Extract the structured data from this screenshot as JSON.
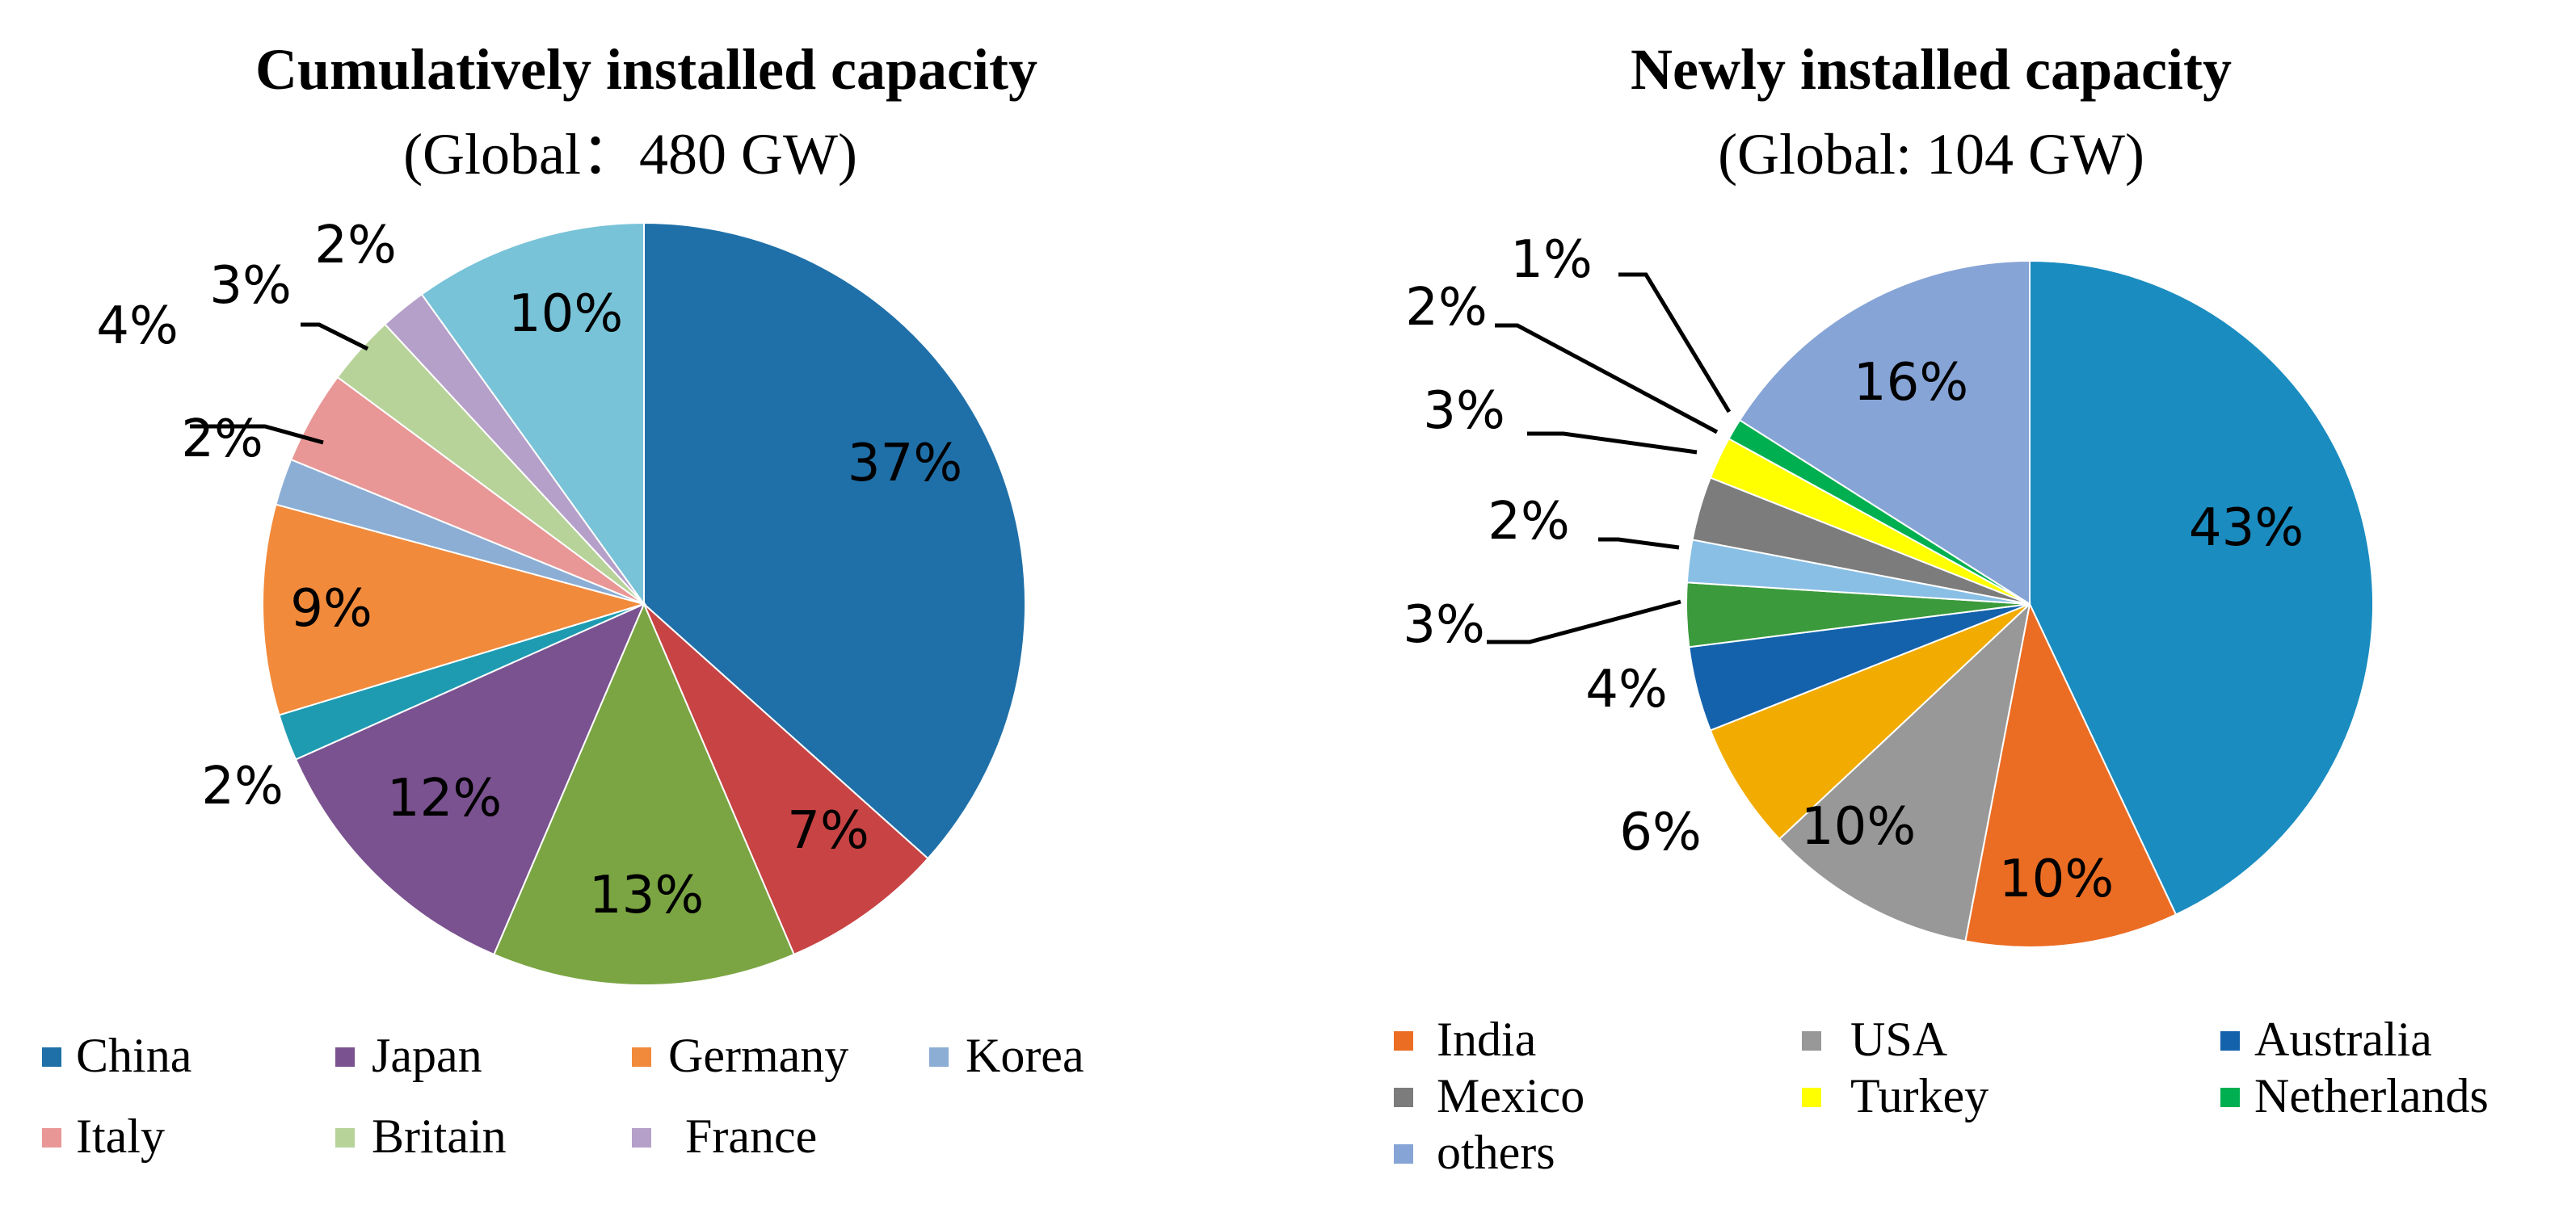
{
  "chart_data": [
    {
      "type": "pie",
      "title": "Cumulatively installed capacity",
      "subtitle": "(Global：480 GW)",
      "categories": [
        "China",
        "Japan",
        "Germany",
        "Korea",
        "Italy",
        "Britain",
        "France"
      ],
      "slices": [
        {
          "name": "China",
          "value": 37,
          "label": "37%",
          "color": "#1F6FA8",
          "legend": true
        },
        {
          "name": "",
          "value": 7,
          "label": "7%",
          "color": "#C84343",
          "legend": false
        },
        {
          "name": "",
          "value": 13,
          "label": "13%",
          "color": "#7BA443",
          "legend": false
        },
        {
          "name": "Japan",
          "value": 12,
          "label": "12%",
          "color": "#7B5290",
          "legend": true
        },
        {
          "name": "",
          "value": 2,
          "label": "2%",
          "color": "#1E9BB0",
          "legend": false
        },
        {
          "name": "Germany",
          "value": 9,
          "label": "9%",
          "color": "#F18A3A",
          "legend": true
        },
        {
          "name": "Korea",
          "value": 2,
          "label": "2%",
          "color": "#8DAED4",
          "legend": true
        },
        {
          "name": "Italy",
          "value": 4,
          "label": "4%",
          "color": "#E99696",
          "legend": true
        },
        {
          "name": "Britain",
          "value": 3,
          "label": "3%",
          "color": "#B7D39A",
          "legend": true
        },
        {
          "name": "France",
          "value": 2,
          "label": "2%",
          "color": "#B5A0C9",
          "legend": true
        },
        {
          "name": "",
          "value": 10,
          "label": "10%",
          "color": "#78C3D8",
          "legend": false
        }
      ]
    },
    {
      "type": "pie",
      "title": "Newly installed capacity",
      "subtitle": "(Global: 104 GW)",
      "categories": [
        "India",
        "USA",
        "Australia",
        "Mexico",
        "Turkey",
        "Netherlands",
        "others"
      ],
      "slices": [
        {
          "name": "",
          "value": 43,
          "label": "43%",
          "color": "#1A8CC0",
          "legend": false
        },
        {
          "name": "India",
          "value": 10,
          "label": "10%",
          "color": "#EB6D24",
          "legend": true
        },
        {
          "name": "USA",
          "value": 10,
          "label": "10%",
          "color": "#989898",
          "legend": true
        },
        {
          "name": "",
          "value": 6,
          "label": "6%",
          "color": "#F2AB00",
          "legend": false
        },
        {
          "name": "Australia",
          "value": 4,
          "label": "4%",
          "color": "#1462AC",
          "legend": true
        },
        {
          "name": "",
          "value": 3,
          "label": "3%",
          "color": "#3A9A3C",
          "legend": false
        },
        {
          "name": "",
          "value": 2,
          "label": "2%",
          "color": "#8ABFE5",
          "legend": false
        },
        {
          "name": "Mexico",
          "value": 3,
          "label": "3%",
          "color": "#7C7C7C",
          "legend": true
        },
        {
          "name": "Turkey",
          "value": 2,
          "label": "2%",
          "color": "#FFFF00",
          "legend": true
        },
        {
          "name": "Netherlands",
          "value": 1,
          "label": "1%",
          "color": "#00B050",
          "legend": true
        },
        {
          "name": "others",
          "value": 16,
          "label": "16%",
          "color": "#86A4D6",
          "legend": true
        }
      ]
    }
  ]
}
